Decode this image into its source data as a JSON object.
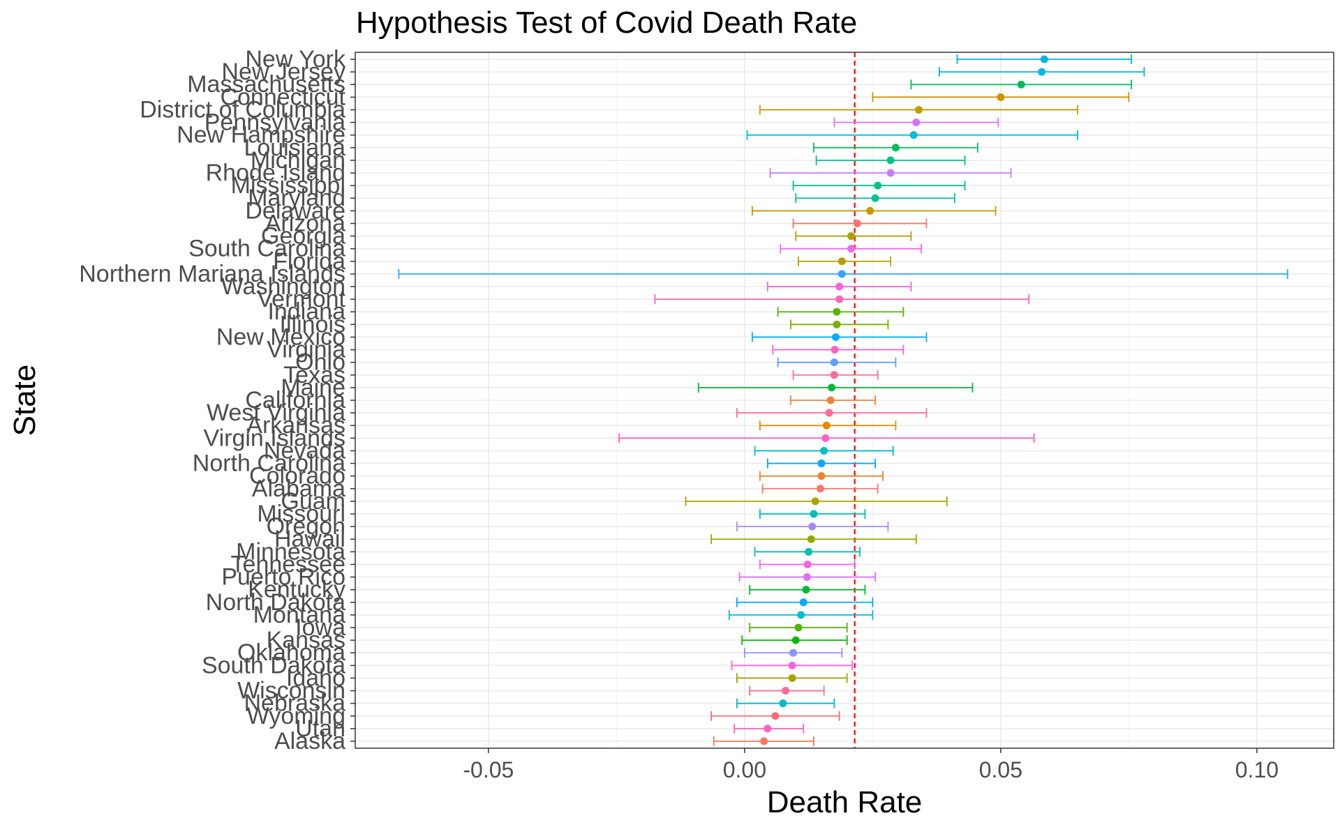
{
  "chart_data": {
    "type": "errorbar",
    "title": "Hypothesis Test of Covid Death Rate",
    "xlabel": "Death Rate",
    "ylabel": "State",
    "xlim": [
      -0.076,
      0.115
    ],
    "xticks": [
      -0.05,
      0.0,
      0.05,
      0.1
    ],
    "xtick_labels": [
      "-0.05",
      "0.00",
      "0.05",
      "0.10"
    ],
    "reference_line": {
      "x": 0.0215,
      "color": "#ff0000",
      "style": "dashed"
    },
    "grid": true,
    "legend": "none",
    "states": [
      {
        "name": "New York",
        "est": 0.0585,
        "lo": 0.0415,
        "hi": 0.0755,
        "color": "#00B4E6"
      },
      {
        "name": "New Jersey",
        "est": 0.058,
        "lo": 0.038,
        "hi": 0.078,
        "color": "#00B8E5"
      },
      {
        "name": "Massachusetts",
        "est": 0.054,
        "lo": 0.0325,
        "hi": 0.0755,
        "color": "#00BD5C"
      },
      {
        "name": "Connecticut",
        "est": 0.05,
        "lo": 0.025,
        "hi": 0.075,
        "color": "#CE9200"
      },
      {
        "name": "District of Columbia",
        "est": 0.034,
        "lo": 0.003,
        "hi": 0.065,
        "color": "#C49A00"
      },
      {
        "name": "Pennsylvania",
        "est": 0.0335,
        "lo": 0.0175,
        "hi": 0.0495,
        "color": "#D575FE"
      },
      {
        "name": "New Hampshire",
        "est": 0.033,
        "lo": 0.0005,
        "hi": 0.065,
        "color": "#00BCD8"
      },
      {
        "name": "Louisiana",
        "est": 0.0295,
        "lo": 0.0135,
        "hi": 0.0455,
        "color": "#00BD5C"
      },
      {
        "name": "Michigan",
        "est": 0.0285,
        "lo": 0.014,
        "hi": 0.043,
        "color": "#00C08B"
      },
      {
        "name": "Rhode Island",
        "est": 0.0285,
        "lo": 0.005,
        "hi": 0.052,
        "color": "#C77CFF"
      },
      {
        "name": "Mississippi",
        "est": 0.026,
        "lo": 0.0095,
        "hi": 0.043,
        "color": "#00C08B"
      },
      {
        "name": "Maryland",
        "est": 0.0255,
        "lo": 0.01,
        "hi": 0.041,
        "color": "#00C19A"
      },
      {
        "name": "Delaware",
        "est": 0.0245,
        "lo": 0.0015,
        "hi": 0.049,
        "color": "#C49A00"
      },
      {
        "name": "Arizona",
        "est": 0.022,
        "lo": 0.0095,
        "hi": 0.0355,
        "color": "#F8766D"
      },
      {
        "name": "Georgia",
        "est": 0.0208,
        "lo": 0.01,
        "hi": 0.0325,
        "color": "#AEA200"
      },
      {
        "name": "South Carolina",
        "est": 0.0208,
        "lo": 0.007,
        "hi": 0.0345,
        "color": "#F066EA"
      },
      {
        "name": "Florida",
        "est": 0.019,
        "lo": 0.0105,
        "hi": 0.0285,
        "color": "#B79F00"
      },
      {
        "name": "Northern Mariana Islands",
        "est": 0.019,
        "lo": -0.0675,
        "hi": 0.106,
        "color": "#35A2FF"
      },
      {
        "name": "Washington",
        "est": 0.0185,
        "lo": 0.0045,
        "hi": 0.0325,
        "color": "#FC61D5"
      },
      {
        "name": "Vermont",
        "est": 0.0185,
        "lo": -0.0175,
        "hi": 0.0555,
        "color": "#FF64B0"
      },
      {
        "name": "Indiana",
        "est": 0.018,
        "lo": 0.0065,
        "hi": 0.031,
        "color": "#5BB300"
      },
      {
        "name": "Illinois",
        "est": 0.018,
        "lo": 0.009,
        "hi": 0.028,
        "color": "#7CAE00"
      },
      {
        "name": "New Mexico",
        "est": 0.0178,
        "lo": 0.0015,
        "hi": 0.0355,
        "color": "#00B0F6"
      },
      {
        "name": "Virginia",
        "est": 0.0176,
        "lo": 0.0055,
        "hi": 0.031,
        "color": "#FF61C3"
      },
      {
        "name": "Ohio",
        "est": 0.0175,
        "lo": 0.0065,
        "hi": 0.0295,
        "color": "#619CFF"
      },
      {
        "name": "Texas",
        "est": 0.0175,
        "lo": 0.0095,
        "hi": 0.026,
        "color": "#FF6C91"
      },
      {
        "name": "Maine",
        "est": 0.017,
        "lo": -0.009,
        "hi": 0.0445,
        "color": "#00BA38"
      },
      {
        "name": "California",
        "est": 0.0168,
        "lo": 0.009,
        "hi": 0.0255,
        "color": "#ED813E"
      },
      {
        "name": "West Virginia",
        "est": 0.0165,
        "lo": -0.0015,
        "hi": 0.0355,
        "color": "#FF6A98"
      },
      {
        "name": "Arkansas",
        "est": 0.016,
        "lo": 0.003,
        "hi": 0.0295,
        "color": "#E38900"
      },
      {
        "name": "Virgin Islands",
        "est": 0.0158,
        "lo": -0.0245,
        "hi": 0.0565,
        "color": "#FF61C9"
      },
      {
        "name": "Nevada",
        "est": 0.0155,
        "lo": 0.002,
        "hi": 0.029,
        "color": "#00BFC4"
      },
      {
        "name": "North Carolina",
        "est": 0.015,
        "lo": 0.0045,
        "hi": 0.0255,
        "color": "#00A9FF"
      },
      {
        "name": "Colorado",
        "est": 0.015,
        "lo": 0.003,
        "hi": 0.027,
        "color": "#EA8331"
      },
      {
        "name": "Alabama",
        "est": 0.0148,
        "lo": 0.0035,
        "hi": 0.026,
        "color": "#F8766D"
      },
      {
        "name": "Guam",
        "est": 0.0138,
        "lo": -0.0115,
        "hi": 0.0395,
        "color": "#ABA300"
      },
      {
        "name": "Missouri",
        "est": 0.0135,
        "lo": 0.003,
        "hi": 0.0235,
        "color": "#00BFB6"
      },
      {
        "name": "Oregon",
        "est": 0.0132,
        "lo": -0.0015,
        "hi": 0.028,
        "color": "#A58AFF"
      },
      {
        "name": "Hawaii",
        "est": 0.013,
        "lo": -0.0065,
        "hi": 0.0335,
        "color": "#93AA00"
      },
      {
        "name": "Minnesota",
        "est": 0.0125,
        "lo": 0.002,
        "hi": 0.0225,
        "color": "#00C0AF"
      },
      {
        "name": "Tennessee",
        "est": 0.0123,
        "lo": 0.003,
        "hi": 0.0215,
        "color": "#F365E6"
      },
      {
        "name": "Puerto Rico",
        "est": 0.0122,
        "lo": -0.001,
        "hi": 0.0255,
        "color": "#DC71FA"
      },
      {
        "name": "Kentucky",
        "est": 0.012,
        "lo": 0.001,
        "hi": 0.0235,
        "color": "#00BA38"
      },
      {
        "name": "North Dakota",
        "est": 0.0115,
        "lo": -0.0015,
        "hi": 0.025,
        "color": "#00ACFC"
      },
      {
        "name": "Montana",
        "est": 0.011,
        "lo": -0.003,
        "hi": 0.025,
        "color": "#00BCD8"
      },
      {
        "name": "Iowa",
        "est": 0.0105,
        "lo": 0.001,
        "hi": 0.02,
        "color": "#53B400"
      },
      {
        "name": "Kansas",
        "est": 0.01,
        "lo": -0.0005,
        "hi": 0.02,
        "color": "#0CB702"
      },
      {
        "name": "Oklahoma",
        "est": 0.0095,
        "lo": 0.0,
        "hi": 0.019,
        "color": "#8B93FF"
      },
      {
        "name": "South Dakota",
        "est": 0.0093,
        "lo": -0.0025,
        "hi": 0.021,
        "color": "#F564E3"
      },
      {
        "name": "Idaho",
        "est": 0.0093,
        "lo": -0.0015,
        "hi": 0.02,
        "color": "#A3A500"
      },
      {
        "name": "Wisconsin",
        "est": 0.008,
        "lo": 0.001,
        "hi": 0.0155,
        "color": "#FF6C91"
      },
      {
        "name": "Nebraska",
        "est": 0.0075,
        "lo": -0.0015,
        "hi": 0.0175,
        "color": "#00BAC8"
      },
      {
        "name": "Wyoming",
        "est": 0.006,
        "lo": -0.0065,
        "hi": 0.0185,
        "color": "#FF6A75"
      },
      {
        "name": "Utah",
        "est": 0.0045,
        "lo": -0.002,
        "hi": 0.0115,
        "color": "#FF62BC"
      },
      {
        "name": "Alaska",
        "est": 0.0038,
        "lo": -0.006,
        "hi": 0.0135,
        "color": "#F57962"
      }
    ]
  }
}
